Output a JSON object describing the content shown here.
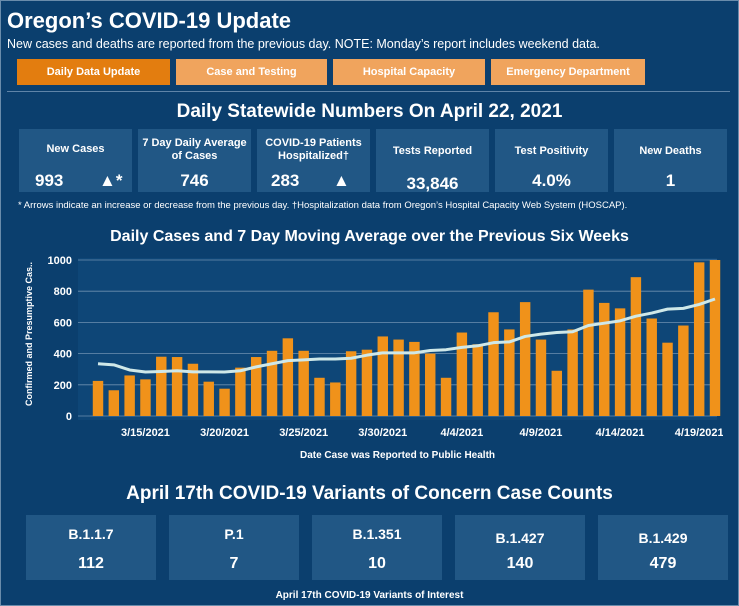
{
  "header": {
    "title": "Oregon’s COVID-19 Update",
    "subtitle": "New cases and deaths are reported from the previous day. NOTE: Monday’s report includes weekend data."
  },
  "tabs": [
    {
      "label": "Daily Data Update",
      "active": true
    },
    {
      "label": "Case and Testing",
      "active": false
    },
    {
      "label": "Hospital Capacity",
      "active": false
    },
    {
      "label": "Emergency Department",
      "active": false
    }
  ],
  "daily": {
    "heading": "Daily Statewide Numbers On April 22, 2021",
    "stats": [
      {
        "label": "New Cases",
        "value": "993",
        "arrow": "up-arrow-icon",
        "mark": "▲*"
      },
      {
        "label": "7 Day Daily Average of Cases",
        "value": "746"
      },
      {
        "label": "COVID-19 Patients Hospitalized†",
        "value": "283",
        "arrow": "up-arrow-icon",
        "mark": "▲"
      },
      {
        "label": "Tests Reported",
        "value": "33,846"
      },
      {
        "label": "Test Positivity",
        "value": "4.0%"
      },
      {
        "label": "New Deaths",
        "value": "1"
      }
    ],
    "note": "* Arrows indicate an increase or decrease from the previous day. †Hospitalization data from Oregon’s Hospital Capacity Web System (HOSCAP)."
  },
  "chart_data": {
    "type": "bar",
    "title": "Daily Cases and 7 Day Moving Average over the Previous Six Weeks",
    "xlabel": "Date Case was Reported to Public Health",
    "ylabel": "Confirmed and Presumptive Cas..",
    "ylim": [
      0,
      1000
    ],
    "yticks": [
      0,
      200,
      400,
      600,
      800,
      1000
    ],
    "grid": true,
    "x_start": "2021-03-12",
    "xtick_labels": [
      {
        "label": "3/15/2021",
        "index": 3
      },
      {
        "label": "3/20/2021",
        "index": 8
      },
      {
        "label": "3/25/2021",
        "index": 13
      },
      {
        "label": "3/30/2021",
        "index": 18
      },
      {
        "label": "4/4/2021",
        "index": 23
      },
      {
        "label": "4/9/2021",
        "index": 28
      },
      {
        "label": "4/14/2021",
        "index": 33
      },
      {
        "label": "4/19/2021",
        "index": 38
      }
    ],
    "series": [
      {
        "name": "Daily Cases",
        "color": "#f0921a",
        "values": [
          225,
          165,
          260,
          235,
          380,
          378,
          335,
          220,
          175,
          310,
          378,
          418,
          498,
          418,
          245,
          215,
          415,
          425,
          510,
          490,
          475,
          400,
          245,
          535,
          460,
          665,
          555,
          730,
          490,
          290,
          555,
          810,
          725,
          690,
          890,
          625,
          470,
          580,
          985,
          1000
        ]
      },
      {
        "name": "7 Day Moving Average",
        "color": "#cfe8e8",
        "values": [
          335,
          328,
          295,
          282,
          285,
          290,
          283,
          283,
          282,
          290,
          315,
          335,
          355,
          360,
          365,
          365,
          370,
          390,
          405,
          405,
          405,
          420,
          425,
          440,
          450,
          470,
          475,
          510,
          525,
          535,
          540,
          580,
          595,
          610,
          640,
          660,
          685,
          690,
          715,
          750
        ]
      }
    ]
  },
  "variants": {
    "heading": "April 17th  COVID-19 Variants of Concern Case Counts",
    "items": [
      {
        "name": "B.1.1.7",
        "count": "112"
      },
      {
        "name": "P.1",
        "count": "7"
      },
      {
        "name": "B.1.351",
        "count": "10"
      },
      {
        "name": "B.1.427",
        "count": "140"
      },
      {
        "name": "B.1.429",
        "count": "479"
      }
    ],
    "footer": "April 17th COVID-19 Variants of Interest"
  }
}
